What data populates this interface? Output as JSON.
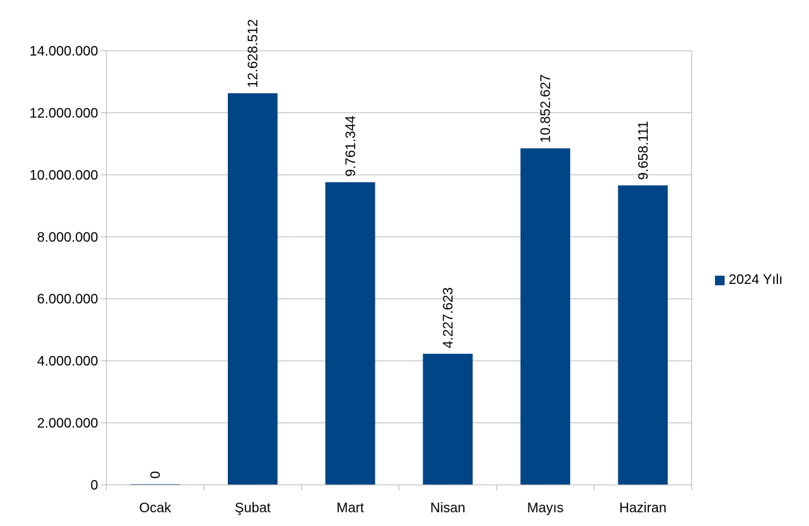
{
  "chart_data": {
    "type": "bar",
    "categories": [
      "Ocak",
      "Şubat",
      "Mart",
      "Nisan",
      "Mayıs",
      "Haziran"
    ],
    "series": [
      {
        "name": "2024 Yılı",
        "values": [
          0,
          12628512,
          9761344,
          4227623,
          10852627,
          9658111
        ],
        "data_labels": [
          "0",
          "12.628.512",
          "9.761.344",
          "4.227.623",
          "10.852.627",
          "9.658.111"
        ]
      }
    ],
    "ylim": [
      0,
      14000000
    ],
    "yticks": [
      0,
      2000000,
      4000000,
      6000000,
      8000000,
      10000000,
      12000000,
      14000000
    ],
    "ytick_labels": [
      "0",
      "2.000.000",
      "4.000.000",
      "6.000.000",
      "8.000.000",
      "10.000.000",
      "12.000.000",
      "14.000.000"
    ],
    "grid": true,
    "legend_position": "right",
    "colors": {
      "bar": "#004586",
      "grid": "#b3b3b3",
      "axis": "#b3b3b3"
    }
  }
}
